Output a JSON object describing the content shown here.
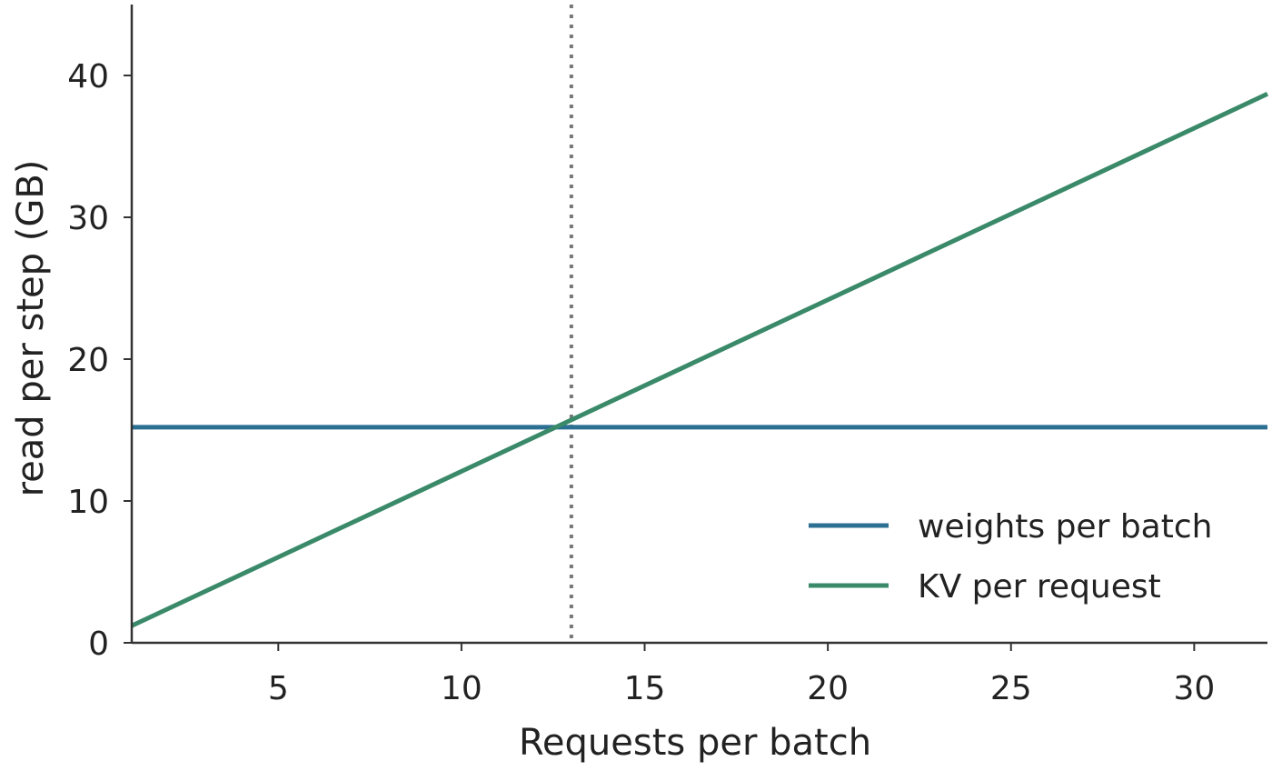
{
  "chart_data": {
    "type": "line",
    "xlabel": "Requests per batch",
    "ylabel": "read per step (GB)",
    "xlim": [
      1,
      32
    ],
    "ylim": [
      0,
      45
    ],
    "xticks": [
      5,
      10,
      15,
      20,
      25,
      30
    ],
    "yticks": [
      0,
      10,
      20,
      30,
      40
    ],
    "grid": false,
    "legend_position": "lower-right",
    "vline_x": 13,
    "series": [
      {
        "name": "weights per batch",
        "color": "#2b6f93",
        "x": [
          1,
          32
        ],
        "y": [
          15.2,
          15.2
        ]
      },
      {
        "name": "KV per request",
        "color": "#3a8a6a",
        "x": [
          1,
          32
        ],
        "y": [
          1.2,
          38.7
        ]
      }
    ]
  }
}
